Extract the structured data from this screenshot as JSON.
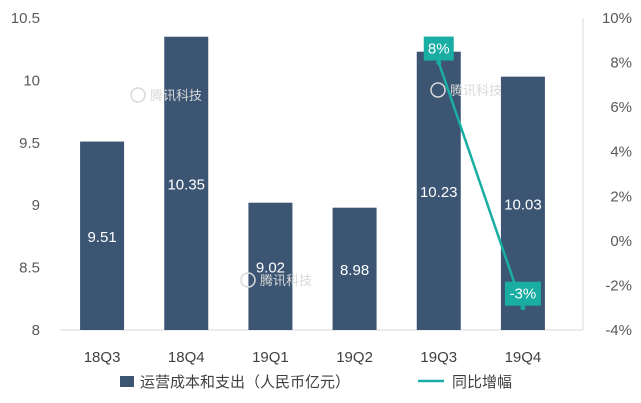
{
  "chart_data": {
    "type": "bar",
    "categories": [
      "18Q3",
      "18Q4",
      "19Q1",
      "19Q2",
      "19Q3",
      "19Q4"
    ],
    "series": [
      {
        "name": "运营成本和支出（人民币亿元）",
        "type": "bar",
        "axis": "left",
        "values": [
          9.51,
          10.35,
          9.02,
          8.98,
          10.23,
          10.03
        ],
        "labels": [
          "9.51",
          "10.35",
          "9.02",
          "8.98",
          "10.23",
          "10.03"
        ],
        "color": "#3b5573"
      },
      {
        "name": "同比增幅",
        "type": "line",
        "axis": "right",
        "values": [
          null,
          null,
          null,
          null,
          8,
          -3
        ],
        "labels": [
          "",
          "",
          "",
          "",
          "8%",
          "-3%"
        ],
        "color": "#1aada3"
      }
    ],
    "y_left": {
      "ylim": [
        8,
        10.5
      ],
      "ticks": [
        "8",
        "8.5",
        "9",
        "9.5",
        "10",
        "10.5"
      ],
      "tick_values": [
        8,
        8.5,
        9,
        9.5,
        10,
        10.5
      ]
    },
    "y_right": {
      "ylim": [
        -4,
        10
      ],
      "ticks": [
        "-4%",
        "-2%",
        "0%",
        "2%",
        "4%",
        "6%",
        "8%",
        "10%"
      ],
      "tick_values": [
        -4,
        -2,
        0,
        2,
        4,
        6,
        8,
        10
      ]
    },
    "grid": false,
    "legend_position": "bottom"
  },
  "watermark": "腾讯科技"
}
